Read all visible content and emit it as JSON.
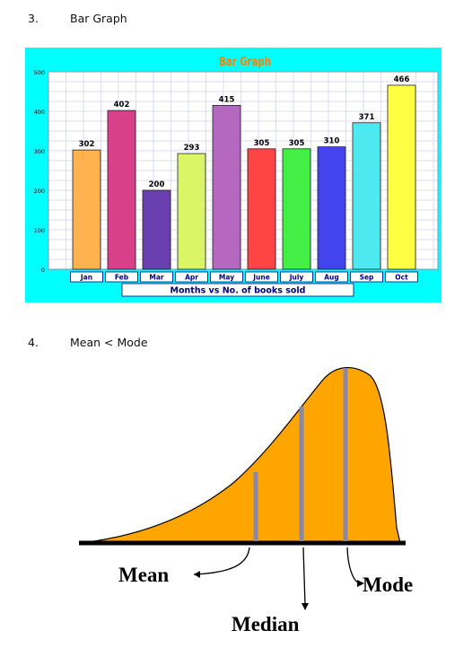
{
  "sections": [
    {
      "number": "3.",
      "title": "Bar Graph"
    },
    {
      "number": "4.",
      "title": "Mean < Mode"
    }
  ],
  "chart_data": {
    "type": "bar",
    "title": "Bar Graph",
    "xlabel": "Months  vs No. of books sold",
    "ylabel": "",
    "categories": [
      "Jan",
      "Feb",
      "Mar",
      "Apr",
      "May",
      "June",
      "July",
      "Aug",
      "Sep",
      "Oct"
    ],
    "values": [
      302,
      402,
      200,
      293,
      415,
      305,
      305,
      310,
      371,
      466
    ],
    "ylim": [
      0,
      500
    ],
    "yticks": [
      0,
      100,
      200,
      300,
      400,
      500
    ],
    "grid": true,
    "colors": {
      "background": "#00ffff",
      "plot": "#ffffff",
      "title": "#ff8000",
      "axis_label": "#000080",
      "bars": [
        "#ffb24d",
        "#d9408a",
        "#6a3fb0",
        "#dbf566",
        "#b568c0",
        "#ff4444",
        "#44ee44",
        "#4444ee",
        "#4de8f0",
        "#ffff44"
      ]
    }
  },
  "distribution": {
    "labels": {
      "mean": "Mean",
      "median": "Median",
      "mode": "Mode"
    },
    "colors": {
      "fill": "#ffa500",
      "marker": "#8888a8",
      "baseline": "#000000"
    }
  }
}
